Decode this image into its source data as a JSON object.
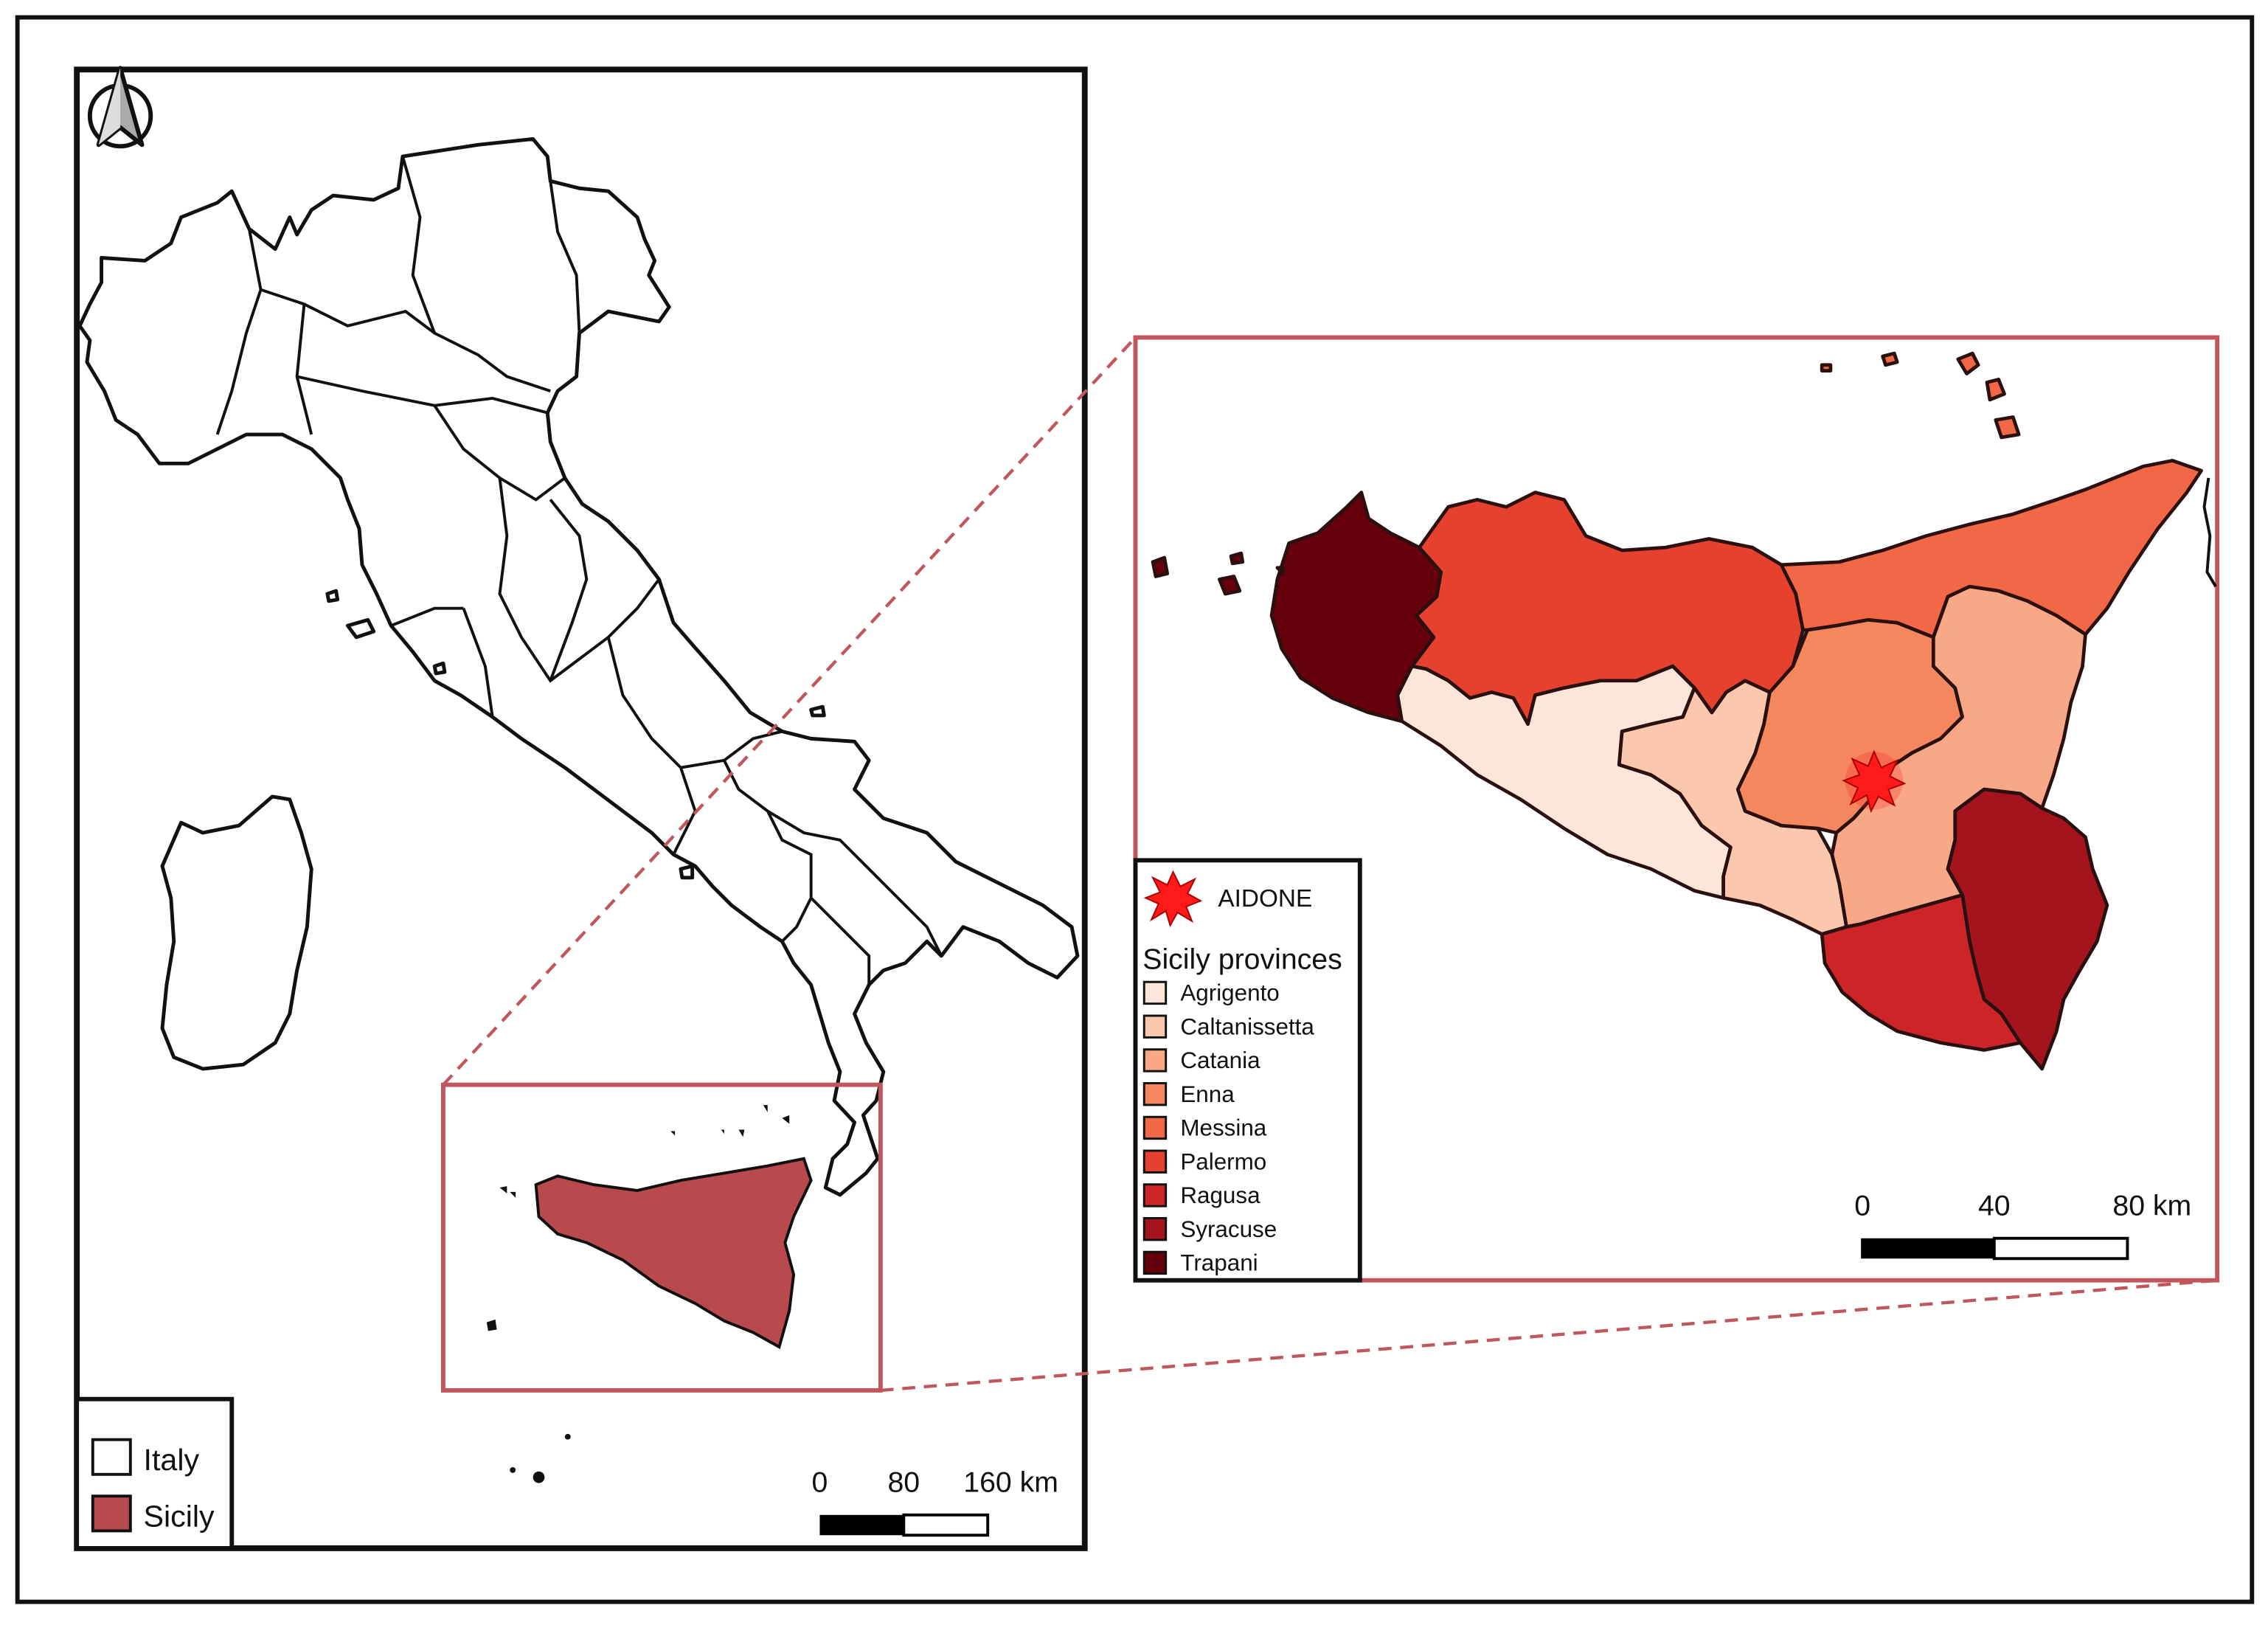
{
  "italy_map": {
    "legend": [
      {
        "label": "Italy",
        "color": "#ffffff"
      },
      {
        "label": "Sicily",
        "color": "#b84a4e"
      }
    ],
    "scale_bar": {
      "labels": [
        "0",
        "80",
        "160 km"
      ]
    }
  },
  "sicily_map": {
    "marker": {
      "label": "AIDONE",
      "icon": "red-star-burst-icon",
      "color": "#ff1a1a"
    },
    "legend_title": "Sicily provinces",
    "provinces": [
      {
        "name": "Agrigento",
        "color": "#fde5da"
      },
      {
        "name": "Caltanissetta",
        "color": "#fbc8ae"
      },
      {
        "name": "Catania",
        "color": "#f8a886"
      },
      {
        "name": "Enna",
        "color": "#f5875e"
      },
      {
        "name": "Messina",
        "color": "#f26746"
      },
      {
        "name": "Palermo",
        "color": "#e6402e"
      },
      {
        "name": "Ragusa",
        "color": "#cc2427"
      },
      {
        "name": "Syracuse",
        "color": "#a5141d"
      },
      {
        "name": "Trapani",
        "color": "#67000d"
      }
    ],
    "scale_bar": {
      "labels": [
        "0",
        "40",
        "80 km"
      ]
    }
  },
  "north_arrow": {
    "icon": "north-arrow-icon"
  },
  "sicily_highlight_color": "#b84a4e"
}
